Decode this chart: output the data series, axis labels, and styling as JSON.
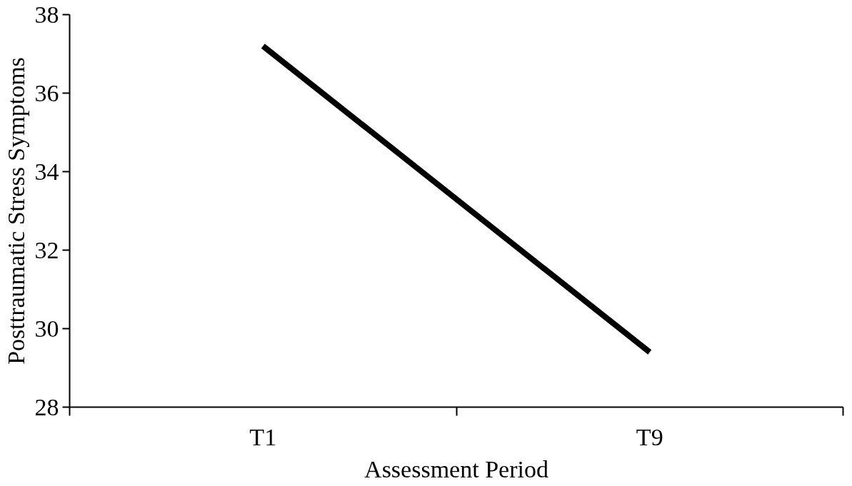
{
  "chart_data": {
    "type": "line",
    "xlabel": "Assessment Period",
    "ylabel": "Posttraumatic Stress Symptoms",
    "categories": [
      "T1",
      "T9"
    ],
    "series": [
      {
        "color": "#000000",
        "values": [
          37.2,
          29.4
        ]
      }
    ],
    "ylim": [
      28,
      38
    ],
    "yticks": [
      28,
      30,
      32,
      34,
      36,
      38
    ],
    "grid": false,
    "marker": "none",
    "line_style": "solid"
  }
}
